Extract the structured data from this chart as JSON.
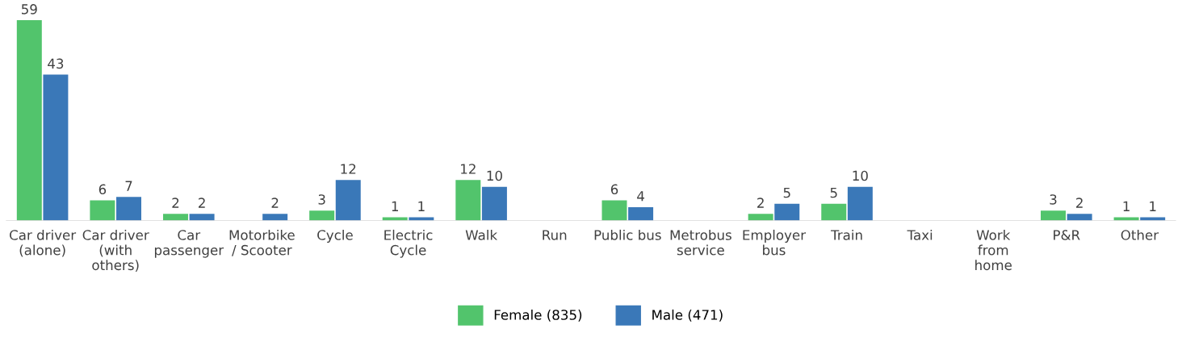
{
  "chart_data": {
    "type": "bar",
    "categories": [
      "Car driver\n(alone)",
      "Car driver\n(with\nothers)",
      "Car\npassenger",
      "Motorbike\n/ Scooter",
      "Cycle",
      "Electric\nCycle",
      "Walk",
      "Run",
      "Public bus",
      "Metrobus\nservice",
      "Employer\nbus",
      "Train",
      "Taxi",
      "Work\nfrom\nhome",
      "P&R",
      "Other"
    ],
    "series": [
      {
        "name": "Female (835)",
        "color": "#52c46c",
        "values": [
          59,
          6,
          2,
          null,
          3,
          1,
          12,
          null,
          6,
          null,
          2,
          5,
          null,
          null,
          3,
          1
        ]
      },
      {
        "name": "Male (471)",
        "color": "#3a78b8",
        "values": [
          43,
          7,
          2,
          2,
          12,
          1,
          10,
          null,
          4,
          null,
          5,
          10,
          null,
          null,
          2,
          1
        ]
      }
    ],
    "data_labels": true,
    "legend": "bottom",
    "grid": false
  }
}
